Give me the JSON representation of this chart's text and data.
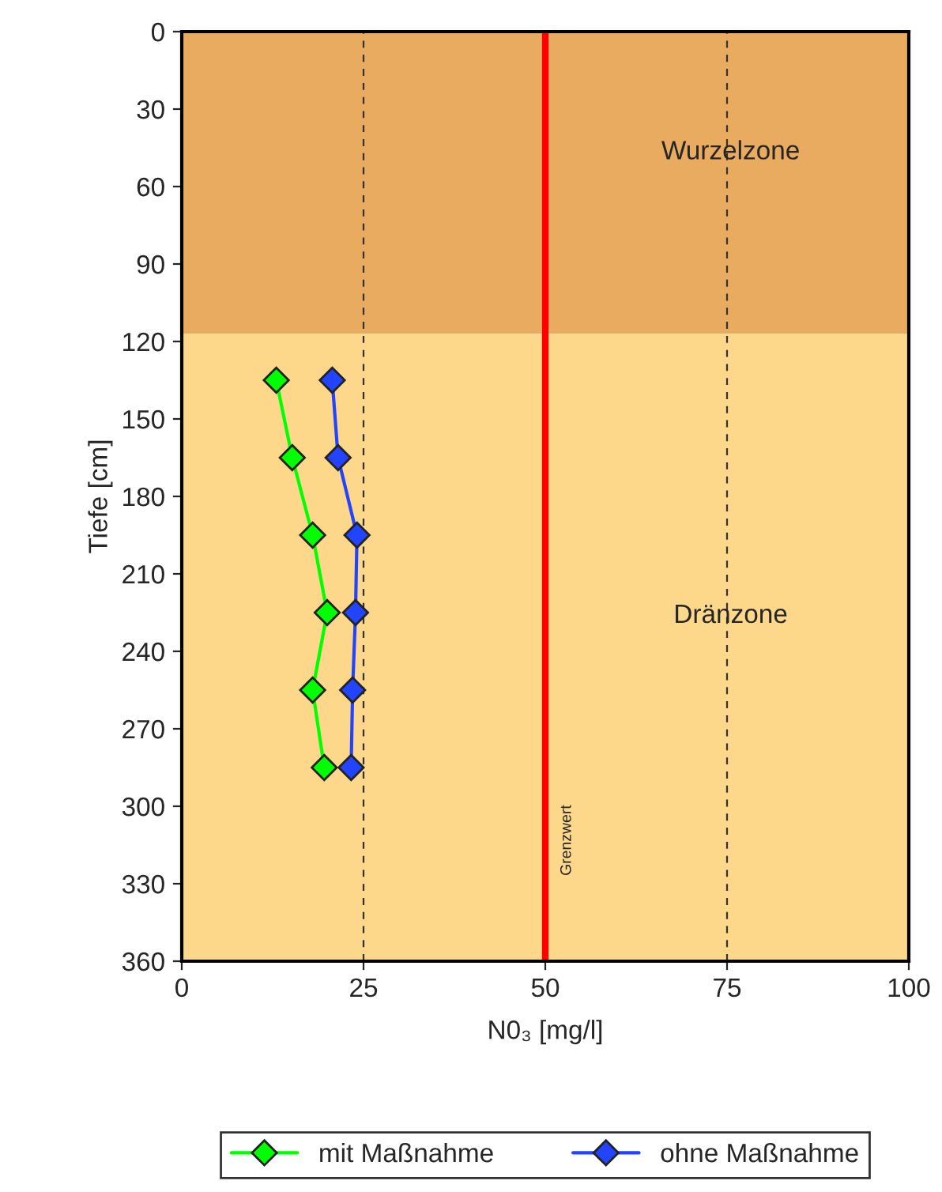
{
  "chart_data": {
    "type": "line",
    "ylabel": "Tiefe [cm]",
    "xlabel": "N0₃ [mg/l]",
    "series": [
      {
        "name": "mit Maßnahme",
        "color": "#00ff00",
        "x": [
          13.0,
          15.2,
          18.0,
          20.0,
          18.0,
          19.6
        ],
        "values": [
          135,
          165,
          195,
          225,
          255,
          285
        ]
      },
      {
        "name": "ohne Maßnahme",
        "color": "#2244ff",
        "x": [
          20.7,
          21.5,
          24.1,
          23.9,
          23.5,
          23.3
        ],
        "values": [
          135,
          165,
          195,
          225,
          255,
          285
        ]
      }
    ],
    "marker": "diamond",
    "line_style": "solid",
    "xlim": [
      0,
      100
    ],
    "xticks": [
      0,
      25,
      50,
      75,
      100
    ],
    "ylim": [
      360,
      0
    ],
    "yticks": [
      0,
      30,
      60,
      90,
      120,
      150,
      180,
      210,
      240,
      270,
      300,
      330,
      360
    ],
    "grid": "x",
    "ref_lines": [
      {
        "axis": "x",
        "value": 50,
        "label": "Grenzwert",
        "color": "#ff0000"
      }
    ],
    "bands": [
      {
        "axis": "y",
        "from": 0,
        "to": 117,
        "label": "Wurzelzone",
        "color": "#e8ab60"
      },
      {
        "axis": "y",
        "from": 117,
        "to": 360,
        "label": "Dränzone",
        "color": "#fdd78a"
      }
    ],
    "legend": "bottom"
  }
}
